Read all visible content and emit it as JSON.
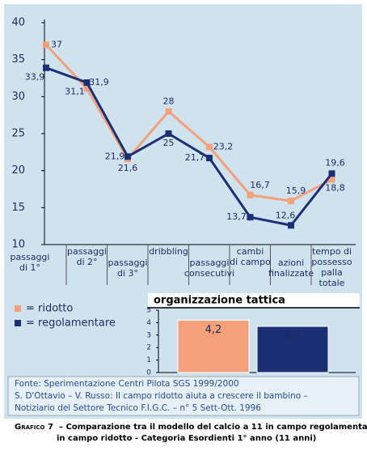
{
  "chart_data": [
    {
      "type": "line",
      "categories": [
        "passaggi\ndi 1°",
        "passaggi\ndi 2°",
        "passaggi\ndi 3°",
        "dribbling",
        "passaggi\nconsecutivi",
        "cambi\ndi campo",
        "azioni\nfinalizzate",
        "tempo di\npossesso\npalla\ntotale"
      ],
      "series": [
        {
          "name": "= ridotto",
          "color": "#f4a07a",
          "values": [
            37,
            31.1,
            21.6,
            28,
            23.2,
            16.7,
            15.9,
            18.8
          ],
          "value_labels": [
            "37",
            "31,1",
            "21,6",
            "28",
            "23,2",
            "16,7",
            "15,9",
            "18,8"
          ]
        },
        {
          "name": "= regolamentare",
          "color": "#1c2f74",
          "values": [
            33.9,
            31.9,
            21.9,
            25,
            21.7,
            13.7,
            12.6,
            19.6
          ],
          "value_labels": [
            "33,9",
            "31,9",
            "21,9",
            "25",
            "21,7",
            "13,7",
            "12,6",
            "19,6"
          ]
        }
      ],
      "ylim": [
        10,
        40
      ],
      "yticks": [
        10,
        15,
        20,
        25,
        30,
        35,
        40
      ]
    },
    {
      "type": "bar",
      "title": "organizzazione tattica",
      "values": [
        4.2,
        3.7
      ],
      "value_labels": [
        "4,2",
        "3,7"
      ],
      "colors": [
        "#f4a07a",
        "#1c2f74"
      ],
      "ylim": [
        0,
        5
      ],
      "yticks": [
        0,
        1,
        2,
        3,
        4,
        5
      ]
    }
  ],
  "source": [
    "Fonte: Sperimentazione Centri Pilota SGS 1999/2000",
    "S. D'Ottavio – V. Russo: Il campo ridotto aiuta a crescere il bambino –",
    "Notiziario del Settore Tecnico F.I.G.C. – n° 5 Sett-Ott. 1996"
  ],
  "caption": {
    "label": "Grafico 7",
    "text": "– Comparazione tra il modello del calcio a 11 in campo regolamentare ed",
    "text2": "in campo ridotto - Categoria Esordienti 1° anno (11 anni)"
  }
}
